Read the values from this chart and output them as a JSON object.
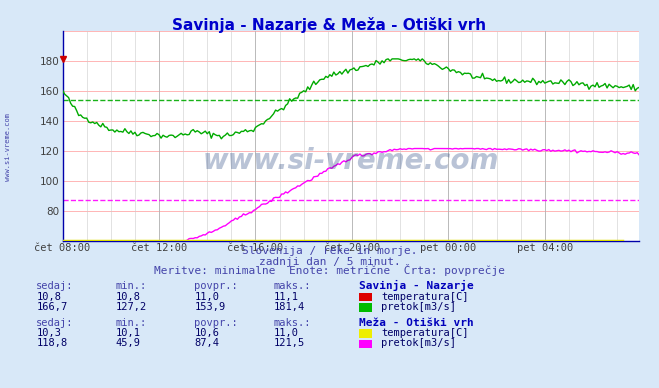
{
  "title": "Savinja - Nazarje & Meža - Otiški vrh",
  "title_color": "#0000cc",
  "bg_color": "#d8e8f8",
  "plot_bg_color": "#ffffff",
  "grid_color_major": "#ffaaaa",
  "grid_color_minor": "#dddddd",
  "xlabel_color": "#404040",
  "watermark": "www.si-vreme.com",
  "subtitle1": "Slovenija / reke in morje.",
  "subtitle2": "zadnji dan / 5 minut.",
  "subtitle3": "Meritve: minimalne  Enote: metrične  Črta: povprečje",
  "subtitle_color": "#4444aa",
  "xticklabels": [
    "čet 08:00",
    "čet 12:00",
    "čet 16:00",
    "čet 20:00",
    "pet 00:00",
    "pet 04:00"
  ],
  "xtick_positions": [
    0,
    48,
    96,
    144,
    192,
    240
  ],
  "total_points": 288,
  "ylim": [
    60,
    200
  ],
  "ytick_vals": [
    80,
    100,
    120,
    140,
    160,
    180
  ],
  "savinja_pretok_color": "#00aa00",
  "meza_pretok_color": "#ff00ff",
  "savinja_avg": 153.9,
  "meza_avg": 87.4,
  "savinja_min": 127.2,
  "savinja_max": 181.4,
  "savinja_sedaj": 166.7,
  "meza_min": 45.9,
  "meza_max": 121.5,
  "meza_sedaj": 118.8,
  "temp_savinja_sedaj": "10,8",
  "temp_savinja_min": "10,8",
  "temp_savinja_povpr": "11,0",
  "temp_savinja_maks": "11,1",
  "temp_meza_sedaj": "10,3",
  "temp_meza_min": "10,1",
  "temp_meza_povpr": "10,6",
  "temp_meza_maks": "11,0",
  "savinja_sedaj_str": "166,7",
  "savinja_min_str": "127,2",
  "savinja_povpr_str": "153,9",
  "savinja_max_str": "181,4",
  "meza_sedaj_str": "118,8",
  "meza_min_str": "45,9",
  "meza_povpr_str": "87,4",
  "meza_max_str": "121,5",
  "table_header_color": "#4444aa",
  "table_value_color": "#000066",
  "table_bold_color": "#0000bb",
  "sidewater_color": "#4444aa",
  "xaxis_line_color_yellow": "#dddd00",
  "xaxis_line_color_red": "#cc0000"
}
